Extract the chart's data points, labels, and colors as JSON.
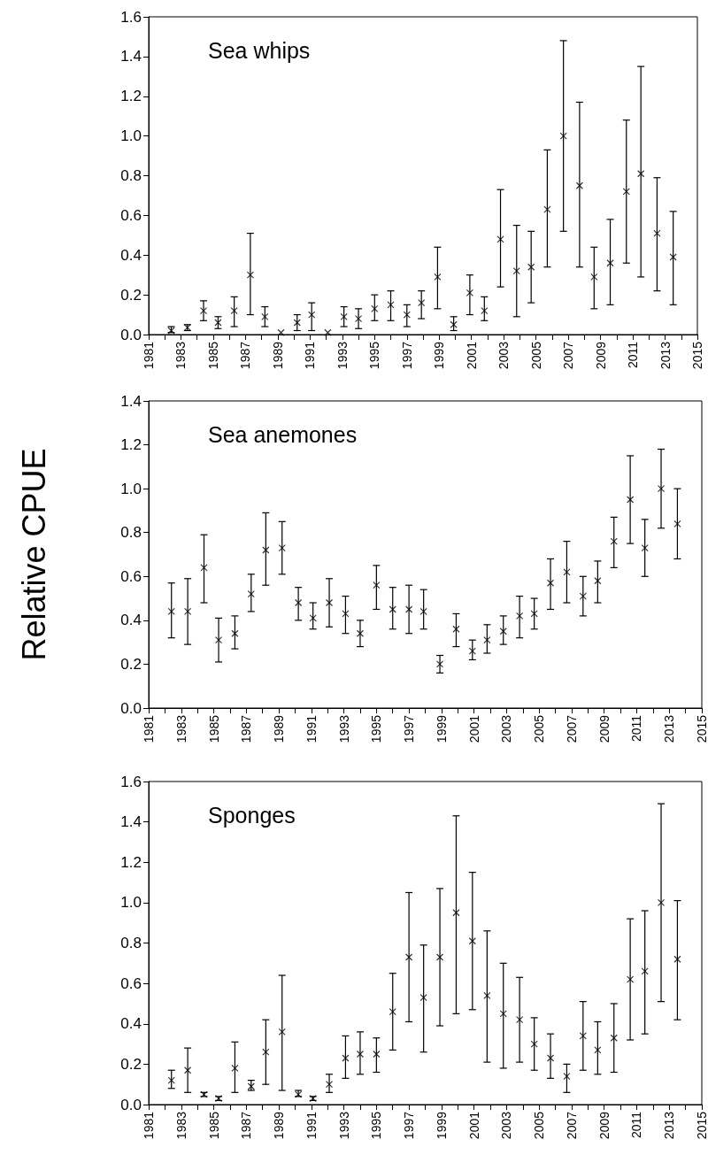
{
  "chart_data": [
    {
      "type": "scatter",
      "title": "Sea whips",
      "color": "#000000",
      "marker": "cross",
      "x": [
        1982.4,
        1983.4,
        1984.4,
        1985.3,
        1986.3,
        1987.3,
        1988.2,
        1989.2,
        1990.2,
        1991.1,
        1992.1,
        1993.1,
        1994.0,
        1995.0,
        1996.0,
        1997.0,
        1997.9,
        1998.9,
        1999.9,
        2000.9,
        2001.8,
        2002.8,
        2003.8,
        2004.7,
        2005.7,
        2006.7,
        2007.7,
        2008.6,
        2009.6,
        2010.6,
        2011.5,
        2012.5,
        2013.5
      ],
      "values": [
        0.02,
        0.035,
        0.12,
        0.06,
        0.12,
        0.3,
        0.09,
        0.01,
        0.06,
        0.1,
        0.01,
        0.09,
        0.08,
        0.13,
        0.15,
        0.1,
        0.16,
        0.29,
        0.05,
        0.21,
        0.12,
        0.48,
        0.32,
        0.34,
        0.63,
        1.0,
        0.75,
        0.29,
        0.36,
        0.72,
        0.81,
        0.51,
        0.39
      ],
      "errors": [
        [
          0.01,
          0.04
        ],
        [
          0.02,
          0.05
        ],
        [
          0.07,
          0.17
        ],
        [
          0.03,
          0.09
        ],
        [
          0.04,
          0.19
        ],
        [
          0.1,
          0.51
        ],
        [
          0.04,
          0.14
        ],
        null,
        [
          0.02,
          0.1
        ],
        [
          0.02,
          0.16
        ],
        null,
        [
          0.04,
          0.14
        ],
        [
          0.03,
          0.13
        ],
        [
          0.07,
          0.2
        ],
        [
          0.07,
          0.22
        ],
        [
          0.04,
          0.15
        ],
        [
          0.08,
          0.22
        ],
        [
          0.13,
          0.44
        ],
        [
          0.02,
          0.09
        ],
        [
          0.1,
          0.3
        ],
        [
          0.07,
          0.19
        ],
        [
          0.24,
          0.73
        ],
        [
          0.09,
          0.55
        ],
        [
          0.16,
          0.52
        ],
        [
          0.34,
          0.93
        ],
        [
          0.52,
          1.48
        ],
        [
          0.34,
          1.17
        ],
        [
          0.13,
          0.44
        ],
        [
          0.15,
          0.58
        ],
        [
          0.36,
          1.08
        ],
        [
          0.29,
          1.35
        ],
        [
          0.22,
          0.79
        ],
        [
          0.15,
          0.62
        ]
      ],
      "xlim": [
        1981,
        2015
      ],
      "xticks": [
        1981,
        {
          "value": 1982,
          "label": null
        },
        1983,
        {
          "value": 1984,
          "label": null
        },
        1985,
        {
          "value": 1986,
          "label": null
        },
        1987,
        {
          "value": 1988,
          "label": null
        },
        1989,
        {
          "value": 1990,
          "label": null
        },
        1991,
        {
          "value": 1992,
          "label": null
        },
        1993,
        {
          "value": 1994,
          "label": null
        },
        1995,
        {
          "value": 1996,
          "label": null
        },
        1997,
        {
          "value": 1998,
          "label": null
        },
        1999,
        {
          "value": 2000,
          "label": null
        },
        2001,
        {
          "value": 2002,
          "label": null
        },
        2003,
        {
          "value": 2004,
          "label": null
        },
        2005,
        {
          "value": 2006,
          "label": null
        },
        2007,
        {
          "value": 2008,
          "label": null
        },
        2009,
        {
          "value": 2010,
          "label": null
        },
        2011,
        {
          "value": 2012,
          "label": null
        },
        2013,
        {
          "value": 2014,
          "label": null
        },
        2015
      ],
      "ylim": [
        0,
        1.6
      ],
      "yticks": [
        "0.0",
        0.2,
        0.4,
        0.6,
        0.8,
        "1.0",
        1.2,
        1.4,
        1.6
      ],
      "grid": false
    },
    {
      "type": "scatter",
      "title": "Sea anemones",
      "ylabel": "Relative CPUE",
      "color": "#000000",
      "marker": "cross",
      "x": [
        1982.4,
        1983.4,
        1984.4,
        1985.3,
        1986.3,
        1987.3,
        1988.2,
        1989.2,
        1990.2,
        1991.1,
        1992.1,
        1993.1,
        1994.0,
        1995.0,
        1996.0,
        1997.0,
        1997.9,
        1998.9,
        1999.9,
        2000.9,
        2001.8,
        2002.8,
        2003.8,
        2004.7,
        2005.7,
        2006.7,
        2007.7,
        2008.6,
        2009.6,
        2010.6,
        2011.5,
        2012.5,
        2013.5
      ],
      "values": [
        0.44,
        0.44,
        0.64,
        0.31,
        0.34,
        0.52,
        0.72,
        0.73,
        0.48,
        0.41,
        0.48,
        0.43,
        0.34,
        0.56,
        0.45,
        0.45,
        0.44,
        0.2,
        0.36,
        0.26,
        0.31,
        0.35,
        0.42,
        0.43,
        0.57,
        0.62,
        0.51,
        0.58,
        0.76,
        0.95,
        0.73,
        1.0,
        0.84
      ],
      "errors": [
        [
          0.32,
          0.57
        ],
        [
          0.29,
          0.59
        ],
        [
          0.48,
          0.79
        ],
        [
          0.21,
          0.41
        ],
        [
          0.27,
          0.42
        ],
        [
          0.44,
          0.61
        ],
        [
          0.56,
          0.89
        ],
        [
          0.61,
          0.85
        ],
        [
          0.4,
          0.55
        ],
        [
          0.36,
          0.48
        ],
        [
          0.37,
          0.59
        ],
        [
          0.34,
          0.51
        ],
        [
          0.28,
          0.4
        ],
        [
          0.45,
          0.65
        ],
        [
          0.36,
          0.55
        ],
        [
          0.34,
          0.56
        ],
        [
          0.36,
          0.54
        ],
        [
          0.16,
          0.24
        ],
        [
          0.28,
          0.43
        ],
        [
          0.22,
          0.31
        ],
        [
          0.25,
          0.38
        ],
        [
          0.29,
          0.42
        ],
        [
          0.32,
          0.51
        ],
        [
          0.36,
          0.5
        ],
        [
          0.45,
          0.68
        ],
        [
          0.48,
          0.76
        ],
        [
          0.42,
          0.6
        ],
        [
          0.48,
          0.67
        ],
        [
          0.64,
          0.87
        ],
        [
          0.75,
          1.15
        ],
        [
          0.6,
          0.86
        ],
        [
          0.82,
          1.18
        ],
        [
          0.68,
          1.0
        ]
      ],
      "xlim": [
        1981,
        2015
      ],
      "xticks": [
        1981,
        {
          "value": 1982,
          "label": null
        },
        1983,
        {
          "value": 1984,
          "label": null
        },
        1985,
        {
          "value": 1986,
          "label": null
        },
        1987,
        {
          "value": 1988,
          "label": null
        },
        1989,
        {
          "value": 1990,
          "label": null
        },
        1991,
        {
          "value": 1992,
          "label": null
        },
        1993,
        {
          "value": 1994,
          "label": null
        },
        1995,
        {
          "value": 1996,
          "label": null
        },
        1997,
        {
          "value": 1998,
          "label": null
        },
        1999,
        {
          "value": 2000,
          "label": null
        },
        2001,
        {
          "value": 2002,
          "label": null
        },
        2003,
        {
          "value": 2004,
          "label": null
        },
        2005,
        {
          "value": 2006,
          "label": null
        },
        2007,
        {
          "value": 2008,
          "label": null
        },
        2009,
        {
          "value": 2010,
          "label": null
        },
        2011,
        {
          "value": 2012,
          "label": null
        },
        2013,
        {
          "value": 2014,
          "label": null
        },
        2015
      ],
      "ylim": [
        0,
        1.4
      ],
      "yticks": [
        "0.0",
        0.2,
        0.4,
        0.6,
        0.8,
        "1.0",
        1.2,
        1.4
      ],
      "grid": false
    },
    {
      "type": "scatter",
      "title": "Sponges",
      "color": "#000000",
      "marker": "cross",
      "x": [
        1982.4,
        1983.4,
        1984.4,
        1985.3,
        1986.3,
        1987.3,
        1988.2,
        1989.2,
        1990.2,
        1991.1,
        1992.1,
        1993.1,
        1994.0,
        1995.0,
        1996.0,
        1997.0,
        1997.9,
        1998.9,
        1999.9,
        2000.9,
        2001.8,
        2002.8,
        2003.8,
        2004.7,
        2005.7,
        2006.7,
        2007.7,
        2008.6,
        2009.6,
        2010.6,
        2011.5,
        2012.5,
        2013.5
      ],
      "values": [
        0.12,
        0.17,
        0.05,
        0.03,
        0.18,
        0.09,
        0.26,
        0.36,
        0.05,
        0.03,
        0.1,
        0.23,
        0.25,
        0.25,
        0.46,
        0.73,
        0.53,
        0.73,
        0.95,
        0.81,
        0.54,
        0.45,
        0.42,
        0.3,
        0.23,
        0.14,
        0.34,
        0.27,
        0.33,
        0.62,
        0.66,
        1.0,
        0.72
      ],
      "errors": [
        [
          0.08,
          0.17
        ],
        [
          0.06,
          0.28
        ],
        [
          0.04,
          0.06
        ],
        [
          0.02,
          0.04
        ],
        [
          0.06,
          0.31
        ],
        [
          0.07,
          0.12
        ],
        [
          0.1,
          0.42
        ],
        [
          0.07,
          0.64
        ],
        [
          0.04,
          0.07
        ],
        [
          0.02,
          0.04
        ],
        [
          0.06,
          0.15
        ],
        [
          0.13,
          0.34
        ],
        [
          0.15,
          0.36
        ],
        [
          0.16,
          0.33
        ],
        [
          0.27,
          0.65
        ],
        [
          0.41,
          1.05
        ],
        [
          0.26,
          0.79
        ],
        [
          0.39,
          1.07
        ],
        [
          0.45,
          1.43
        ],
        [
          0.47,
          1.15
        ],
        [
          0.21,
          0.86
        ],
        [
          0.18,
          0.7
        ],
        [
          0.21,
          0.63
        ],
        [
          0.17,
          0.43
        ],
        [
          0.13,
          0.35
        ],
        [
          0.06,
          0.2
        ],
        [
          0.17,
          0.51
        ],
        [
          0.15,
          0.41
        ],
        [
          0.16,
          0.5
        ],
        [
          0.32,
          0.92
        ],
        [
          0.35,
          0.96
        ],
        [
          0.51,
          1.49
        ],
        [
          0.42,
          1.01
        ]
      ],
      "xlim": [
        1981,
        2015
      ],
      "xticks": [
        1981,
        {
          "value": 1982,
          "label": null
        },
        1983,
        {
          "value": 1984,
          "label": null
        },
        1985,
        {
          "value": 1986,
          "label": null
        },
        1987,
        {
          "value": 1988,
          "label": null
        },
        1989,
        {
          "value": 1990,
          "label": null
        },
        1991,
        {
          "value": 1992,
          "label": null
        },
        1993,
        {
          "value": 1994,
          "label": null
        },
        1995,
        {
          "value": 1996,
          "label": null
        },
        1997,
        {
          "value": 1998,
          "label": null
        },
        1999,
        {
          "value": 2000,
          "label": null
        },
        2001,
        {
          "value": 2002,
          "label": null
        },
        2003,
        {
          "value": 2004,
          "label": null
        },
        2005,
        {
          "value": 2006,
          "label": null
        },
        2007,
        {
          "value": 2008,
          "label": null
        },
        2009,
        {
          "value": 2010,
          "label": null
        },
        2011,
        {
          "value": 2012,
          "label": null
        },
        2013,
        {
          "value": 2014,
          "label": null
        },
        2015
      ],
      "ylim": [
        0,
        1.6
      ],
      "yticks": [
        "0.0",
        0.2,
        0.4,
        0.6,
        0.8,
        "1.0",
        1.2,
        1.4,
        1.6
      ],
      "grid": false
    }
  ]
}
